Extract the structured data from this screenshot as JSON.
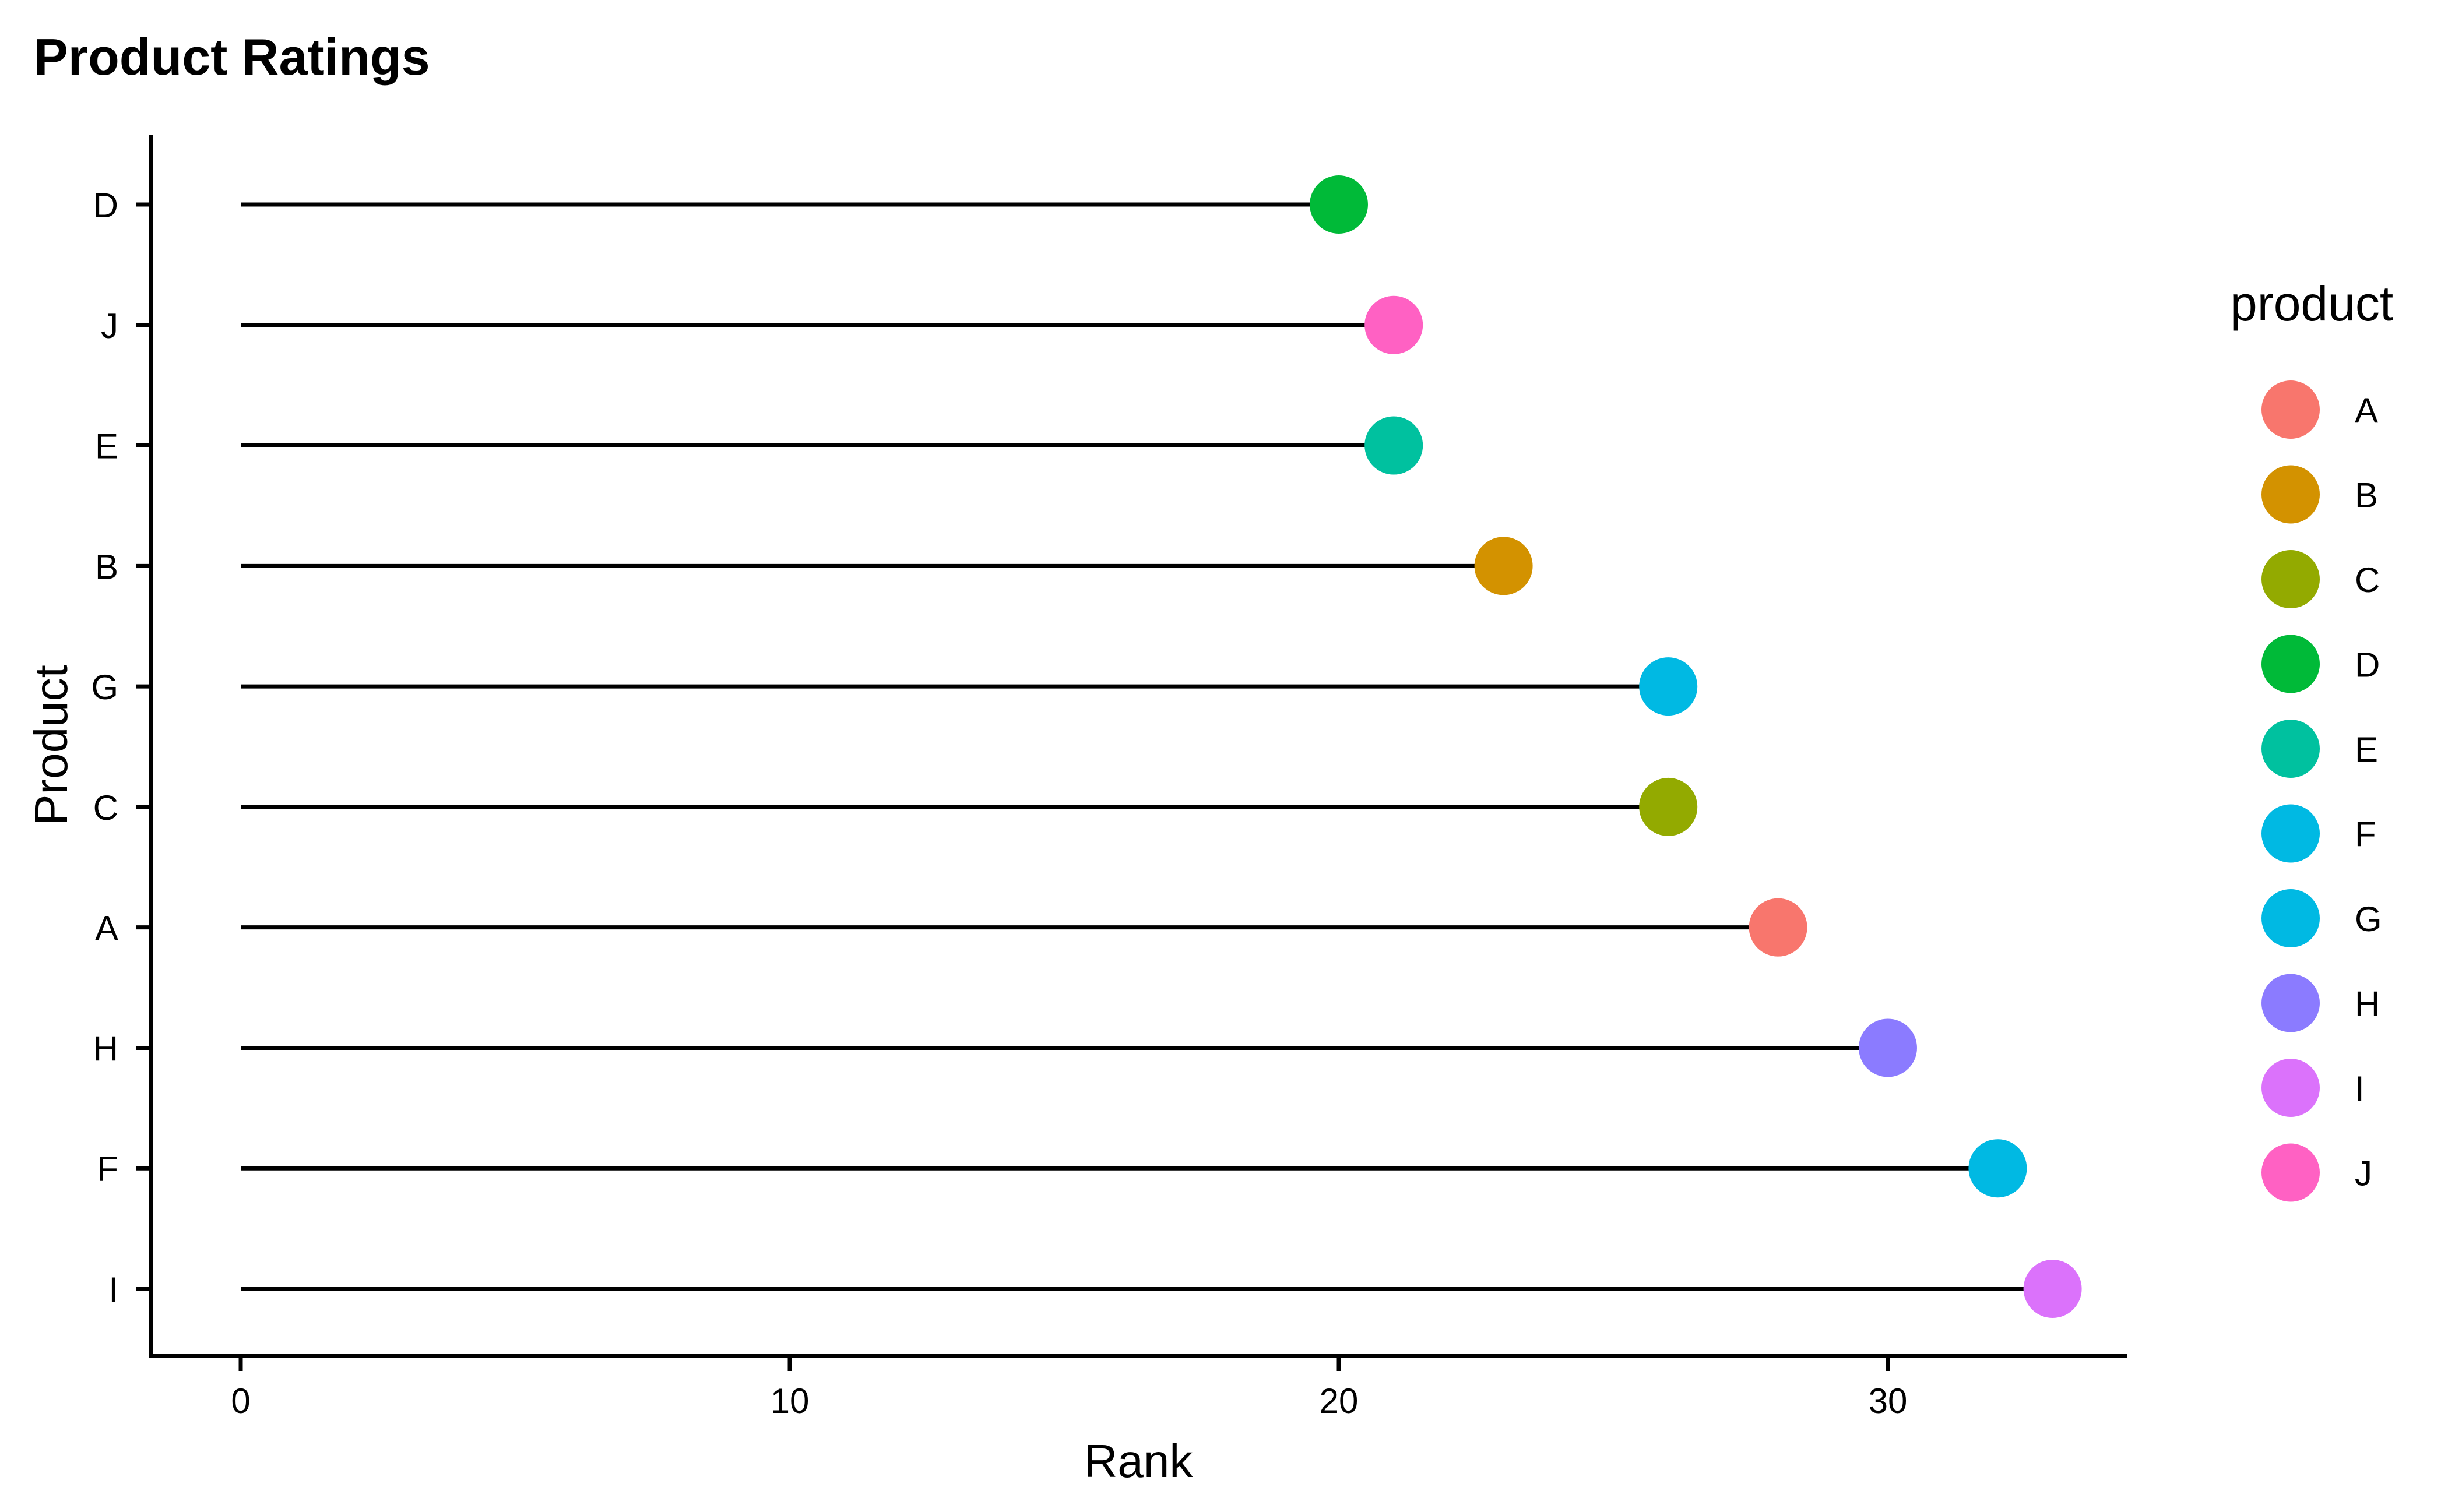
{
  "chart_data": {
    "type": "lollipop",
    "title": "Product Ratings",
    "xlabel": "Rank",
    "ylabel": "Product",
    "xlim": [
      -1.7,
      34.8
    ],
    "x_ticks": [
      0,
      10,
      20,
      30
    ],
    "grid": false,
    "categories": [
      "I",
      "F",
      "H",
      "A",
      "C",
      "G",
      "B",
      "E",
      "J",
      "D"
    ],
    "values": [
      33,
      32,
      30,
      28,
      26,
      26,
      23,
      21,
      21,
      20
    ],
    "legend": {
      "title": "product",
      "position": "right",
      "entries": [
        "A",
        "B",
        "C",
        "D",
        "E",
        "F",
        "G",
        "H",
        "I",
        "J"
      ]
    },
    "colors": {
      "A": "#F8766D",
      "B": "#D39200",
      "C": "#93AA00",
      "D": "#00BA38",
      "E": "#00C19F",
      "F": "#00B9E3",
      "G": "#00B9E3",
      "H": "#8B7BFF",
      "I": "#DB72FB",
      "J": "#FF61C3"
    },
    "stem_color": "#000000"
  }
}
